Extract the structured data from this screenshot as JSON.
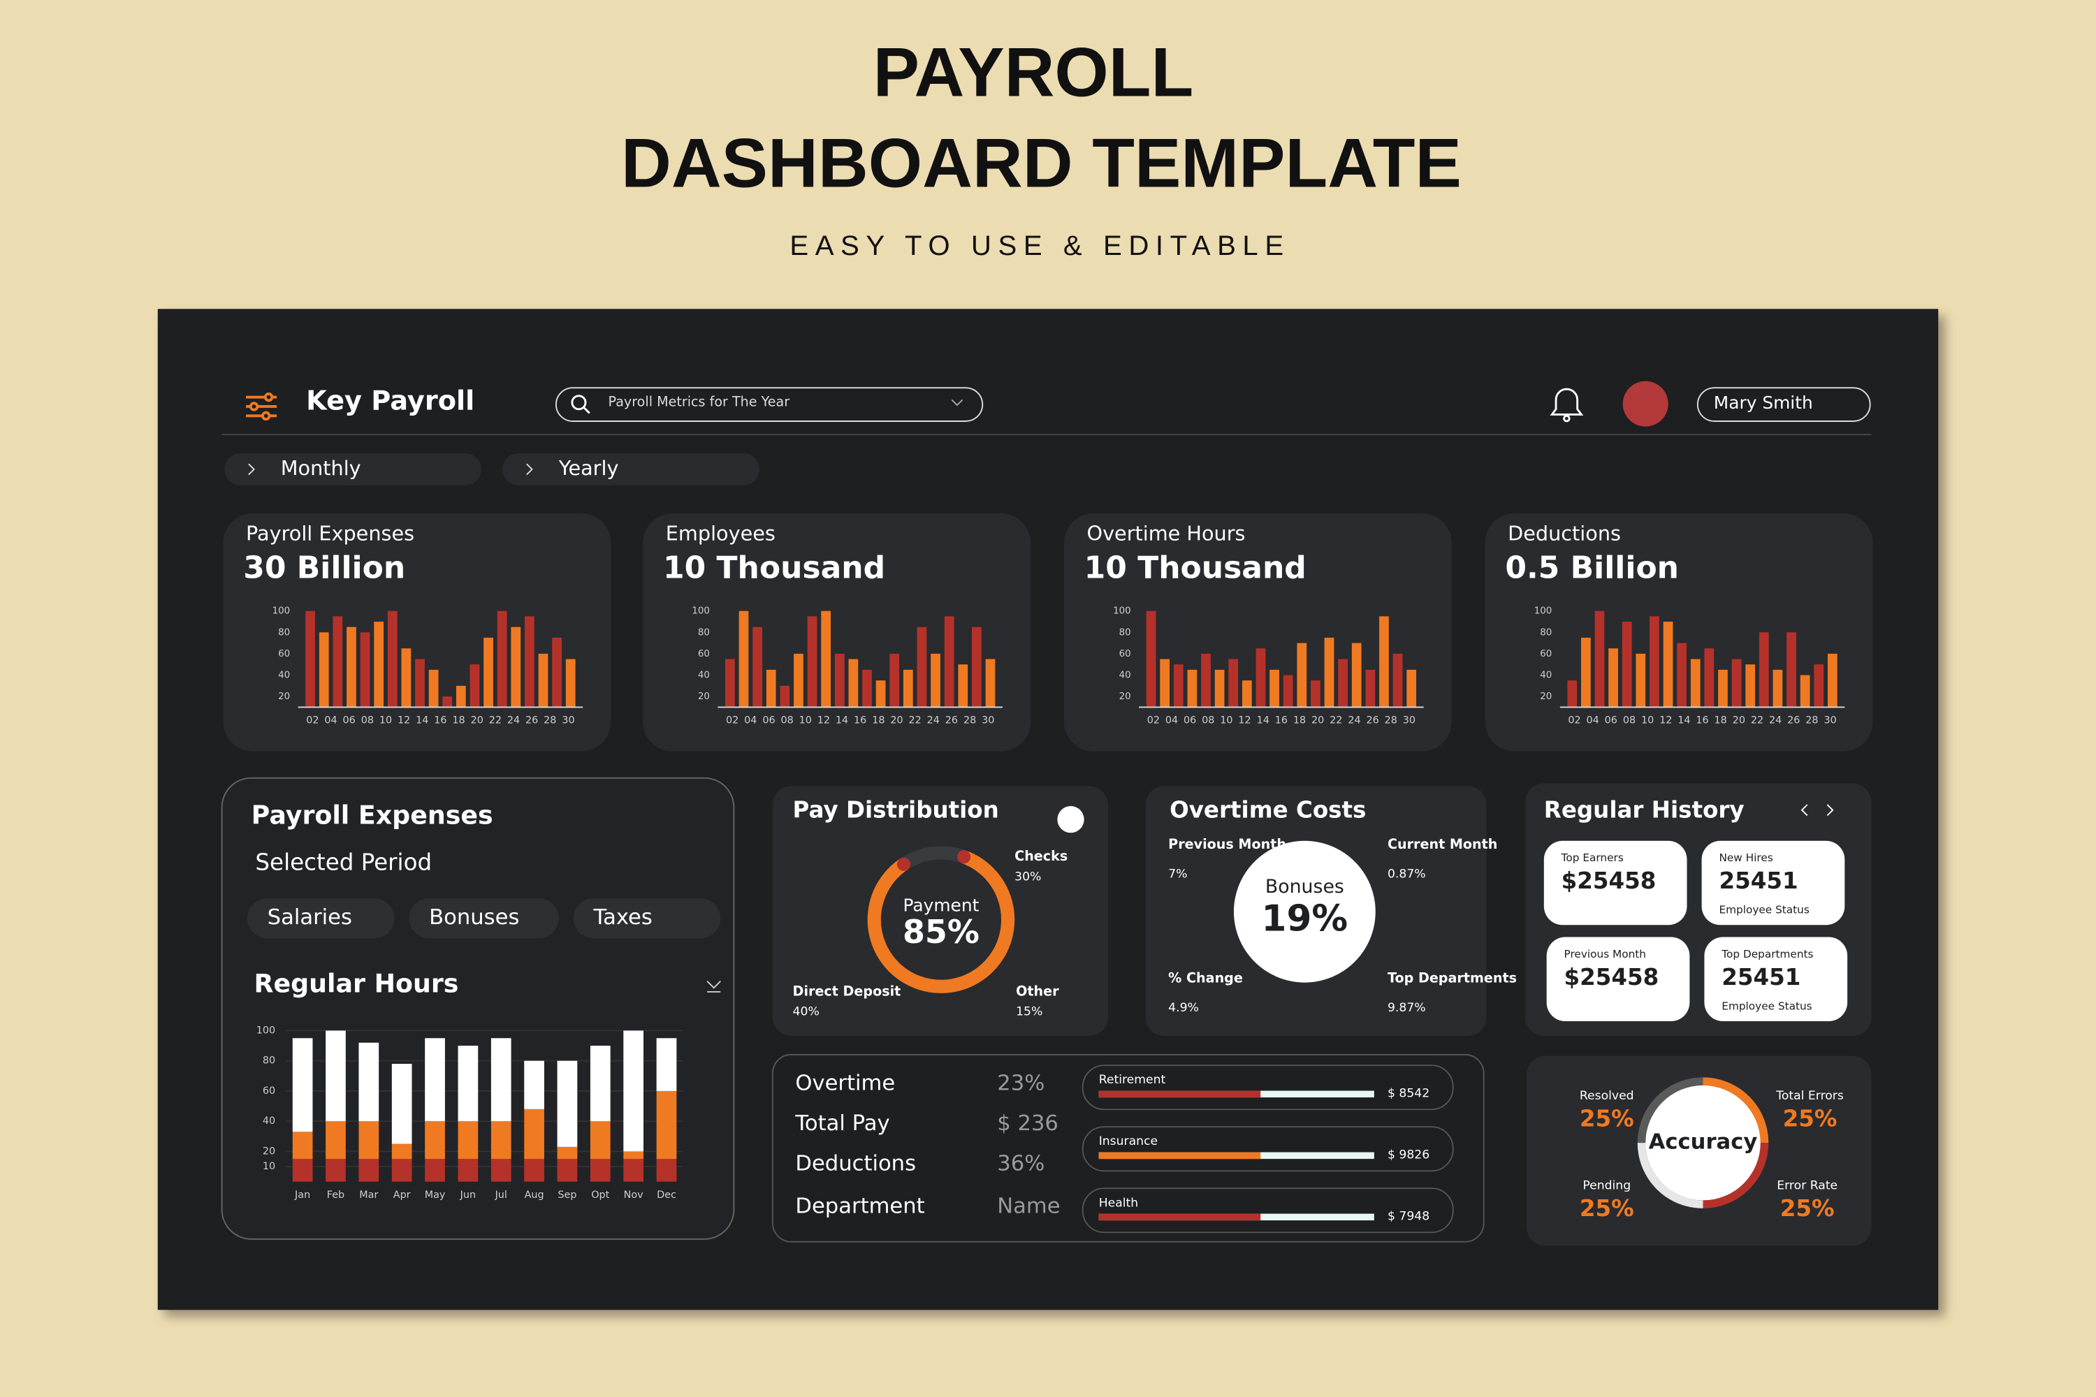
{
  "header": {
    "title": [
      "PAYROLL",
      "DASHBOARD TEMPLATE"
    ],
    "subtitle": "EASY TO USE & EDITABLE"
  },
  "app": {
    "brand": "Key Payroll",
    "search_placeholder": "Payroll Metrics for The Year",
    "user_name": "Mary Smith",
    "tabs": [
      "Monthly",
      "Yearly"
    ]
  },
  "kpi_cards": [
    {
      "label": "Payroll Expenses",
      "value": "30 Billion",
      "chart": {
        "type": "bar",
        "values": [
          100,
          80,
          95,
          85,
          80,
          90,
          100,
          65,
          55,
          45,
          20,
          30,
          50,
          75,
          100,
          85,
          95,
          60,
          75,
          55
        ],
        "colors": [
          "#b5322b",
          "#f07a22"
        ],
        "ylim": [
          10,
          100
        ],
        "yticks": [
          20,
          40,
          60,
          80,
          100
        ],
        "xlabels": [
          "02",
          "04",
          "06",
          "08",
          "10",
          "12",
          "14",
          "16",
          "18",
          "20",
          "22",
          "24",
          "26",
          "28",
          "30"
        ]
      }
    },
    {
      "label": "Employees",
      "value": "10 Thousand",
      "chart": {
        "type": "bar",
        "values": [
          55,
          100,
          85,
          45,
          30,
          60,
          95,
          100,
          60,
          55,
          45,
          35,
          60,
          45,
          85,
          60,
          95,
          50,
          85,
          55
        ],
        "colors": [
          "#b5322b",
          "#f07a22"
        ],
        "ylim": [
          10,
          100
        ],
        "yticks": [
          20,
          40,
          60,
          80,
          100
        ],
        "xlabels": [
          "02",
          "04",
          "06",
          "08",
          "10",
          "12",
          "14",
          "16",
          "18",
          "20",
          "22",
          "24",
          "26",
          "28",
          "30"
        ]
      }
    },
    {
      "label": "Overtime Hours",
      "value": "10 Thousand",
      "chart": {
        "type": "bar",
        "values": [
          100,
          55,
          50,
          45,
          60,
          45,
          55,
          35,
          65,
          45,
          40,
          70,
          35,
          75,
          55,
          70,
          45,
          95,
          60,
          45
        ],
        "colors": [
          "#b5322b",
          "#f07a22"
        ],
        "ylim": [
          10,
          100
        ],
        "yticks": [
          20,
          40,
          60,
          80,
          100
        ],
        "xlabels": [
          "02",
          "04",
          "06",
          "08",
          "10",
          "12",
          "14",
          "16",
          "18",
          "20",
          "22",
          "24",
          "26",
          "28",
          "30"
        ]
      }
    },
    {
      "label": "Deductions",
      "value": "0.5 Billion",
      "chart": {
        "type": "bar",
        "values": [
          35,
          75,
          100,
          65,
          90,
          60,
          95,
          90,
          70,
          55,
          65,
          45,
          55,
          50,
          80,
          45,
          80,
          40,
          50,
          60
        ],
        "colors": [
          "#b5322b",
          "#f07a22"
        ],
        "ylim": [
          10,
          100
        ],
        "yticks": [
          20,
          40,
          60,
          80,
          100
        ],
        "xlabels": [
          "02",
          "04",
          "06",
          "08",
          "10",
          "12",
          "14",
          "16",
          "18",
          "20",
          "22",
          "24",
          "26",
          "28",
          "30"
        ]
      }
    }
  ],
  "payroll_panel": {
    "title": "Payroll Expenses",
    "subtitle": "Selected Period",
    "filters": [
      "Salaries",
      "Bonuses",
      "Taxes"
    ],
    "chart": {
      "type": "stacked_bar",
      "title": "Regular Hours",
      "categories": [
        "Jan",
        "Feb",
        "Mar",
        "Apr",
        "May",
        "Jun",
        "Jul",
        "Aug",
        "Sep",
        "Opt",
        "Nov",
        "Dec"
      ],
      "series": [
        {
          "color": "#b5322b",
          "values": [
            15,
            15,
            15,
            15,
            15,
            15,
            15,
            15,
            15,
            15,
            15,
            15
          ]
        },
        {
          "color": "#f07a22",
          "values": [
            18,
            25,
            25,
            10,
            25,
            25,
            25,
            33,
            8,
            25,
            5,
            45
          ]
        },
        {
          "color": "#ffffff",
          "values": [
            62,
            60,
            52,
            53,
            55,
            50,
            55,
            32,
            57,
            50,
            80,
            35
          ]
        }
      ],
      "ylim": [
        0,
        100
      ],
      "yticks": [
        10,
        20,
        40,
        60,
        80,
        100
      ]
    }
  },
  "pay_distribution": {
    "title": "Pay Distribution",
    "center_label": "Payment",
    "value": 85,
    "value_label": "85%",
    "color": "#f07a22",
    "items": [
      {
        "label": "Checks",
        "value": "30%"
      },
      {
        "label": "Direct Deposit",
        "value": "40%"
      },
      {
        "label": "Other",
        "value": "15%"
      }
    ]
  },
  "overtime_costs": {
    "title": "Overtime Costs",
    "center_label": "Bonuses",
    "center_value": "19%",
    "items": [
      {
        "label": "Previous Month",
        "value": "7%"
      },
      {
        "label": "Current Month",
        "value": "0.87%"
      },
      {
        "label": "% Change",
        "value": "4.9%"
      },
      {
        "label": "Top Departments",
        "value": "9.87%"
      }
    ]
  },
  "regular_history": {
    "title": "Regular History",
    "cards": [
      {
        "label": "Top Earners",
        "value": "$25458"
      },
      {
        "label": "New Hires",
        "value": "25451",
        "note": "Employee Status"
      },
      {
        "label": "Previous Month",
        "value": "$25458"
      },
      {
        "label": "Top Departments",
        "value": "25451",
        "note": "Employee Status"
      }
    ]
  },
  "summary_table": {
    "rows": [
      [
        "Overtime",
        "23%"
      ],
      [
        "Total Pay",
        "$ 236"
      ],
      [
        "Deductions",
        "36%"
      ],
      [
        "Department",
        "Name"
      ]
    ]
  },
  "benefits": [
    {
      "label": "Retirement",
      "value": "$ 8542",
      "color": "#b5322b"
    },
    {
      "label": "Insurance",
      "value": "$ 9826",
      "color": "#f07a22"
    },
    {
      "label": "Health",
      "value": "$ 7948",
      "color": "#b5322b"
    }
  ],
  "accuracy": {
    "title": "Accuracy",
    "items": [
      {
        "label": "Resolved",
        "value": 25,
        "value_label": "25%",
        "color": "#5a5a5a"
      },
      {
        "label": "Total Errors",
        "value": 25,
        "value_label": "25%",
        "color": "#f07a22"
      },
      {
        "label": "Pending",
        "value": 25,
        "value_label": "25%",
        "color": "#b5322b"
      },
      {
        "label": "Error Rate",
        "value": 25,
        "value_label": "25%",
        "color": "#e6e6e6"
      }
    ]
  }
}
